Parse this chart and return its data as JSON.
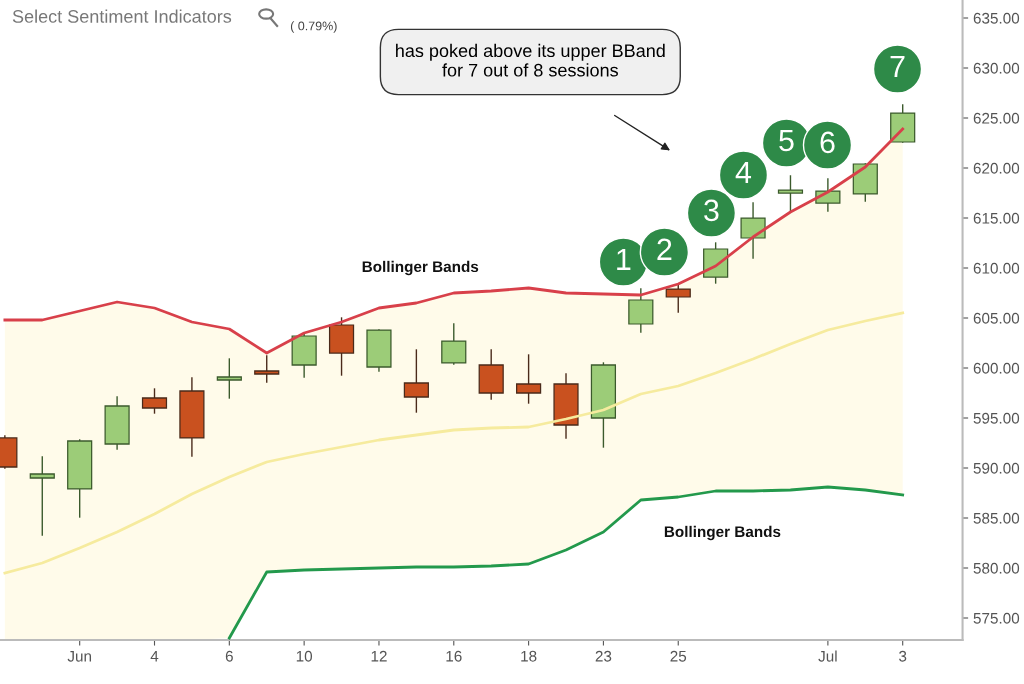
{
  "chart_data": {
    "type": "candlestick",
    "title": "Select Sentiment Indicators",
    "categories": [
      null,
      null,
      "Jun",
      null,
      "4",
      null,
      "6",
      null,
      "10",
      null,
      "12",
      null,
      "16",
      null,
      "18",
      null,
      "23",
      null,
      "25",
      null,
      null,
      null,
      "Jul",
      null,
      "3"
    ],
    "ohlc": [
      [
        593.0,
        593.2,
        590.0,
        590.1
      ],
      [
        589.0,
        591.1,
        583.3,
        589.4
      ],
      [
        587.9,
        592.8,
        585.1,
        592.7
      ],
      [
        592.4,
        597.1,
        591.9,
        596.2
      ],
      [
        597.0,
        597.9,
        595.5,
        596.0
      ],
      [
        597.7,
        599.0,
        591.2,
        593.0
      ],
      [
        598.8,
        600.9,
        597.0,
        599.1
      ],
      [
        599.7,
        601.2,
        598.6,
        599.4
      ],
      [
        600.3,
        603.5,
        599.1,
        603.2
      ],
      [
        604.3,
        605.0,
        599.3,
        601.5
      ],
      [
        600.1,
        603.8,
        599.7,
        603.8
      ],
      [
        598.5,
        601.8,
        595.6,
        597.1
      ],
      [
        600.5,
        604.4,
        600.4,
        602.7
      ],
      [
        600.3,
        601.8,
        596.9,
        597.5
      ],
      [
        598.4,
        601.3,
        596.5,
        597.5
      ],
      [
        598.4,
        599.4,
        593.0,
        594.3
      ],
      [
        595.0,
        600.5,
        592.1,
        600.3
      ],
      [
        604.4,
        607.9,
        603.6,
        606.8
      ],
      [
        607.9,
        608.4,
        605.6,
        607.1
      ],
      [
        609.1,
        612.5,
        608.5,
        611.9
      ],
      [
        613.0,
        616.5,
        611.0,
        615.0
      ],
      [
        617.5,
        619.2,
        615.6,
        617.8
      ],
      [
        616.5,
        618.9,
        615.7,
        617.7
      ],
      [
        617.4,
        620.4,
        616.7,
        620.4
      ],
      [
        622.6,
        626.3,
        622.6,
        625.5
      ]
    ],
    "colors": [
      "#c9511f",
      "#9ccc78",
      "#9ccc78",
      "#9ccc78",
      "#c9511f",
      "#c9511f",
      "#9ccc78",
      "#c9511f",
      "#9ccc78",
      "#c9511f",
      "#9ccc78",
      "#c9511f",
      "#9ccc78",
      "#c9511f",
      "#c9511f",
      "#c9511f",
      "#9ccc78",
      "#9ccc78",
      "#c9511f",
      "#9ccc78",
      "#9ccc78",
      "#9ccc78",
      "#9ccc78",
      "#9ccc78",
      "#9ccc78"
    ],
    "series": [
      {
        "type": "line",
        "color": "#f6eb9e",
        "values": [
          579.5,
          580.5,
          582.0,
          583.6,
          585.4,
          587.4,
          589.1,
          590.6,
          591.4,
          592.1,
          592.8,
          593.3,
          593.8,
          594.0,
          594.1,
          594.9,
          595.8,
          597.4,
          598.2,
          599.5,
          600.9,
          602.4,
          603.8,
          604.7,
          605.5
        ]
      },
      {
        "type": "area",
        "color": "#d8404a",
        "values": [
          604.8,
          604.8,
          605.7,
          606.6,
          606.0,
          604.6,
          603.9,
          601.5,
          603.5,
          604.6,
          606.0,
          606.5,
          607.5,
          607.7,
          608.0,
          607.5,
          607.4,
          607.3,
          608.4,
          610.2,
          613.1,
          615.6,
          617.6,
          620.1,
          623.9
        ]
      },
      {
        "type": "line",
        "color": "#23994c",
        "values": [
          null,
          null,
          null,
          null,
          null,
          null,
          573.0,
          579.6,
          579.8,
          579.9,
          580.0,
          580.1,
          580.1,
          580.2,
          580.4,
          581.8,
          583.6,
          586.8,
          587.1,
          587.7,
          587.7,
          587.8,
          588.1,
          587.8,
          587.3
        ]
      }
    ],
    "ylim": [
      572.8,
      636.8
    ],
    "yticks": [
      {
        "value": 575,
        "label": "575.00"
      },
      {
        "value": 580,
        "label": "580.00"
      },
      {
        "value": 585,
        "label": "585.00"
      },
      {
        "value": 590,
        "label": "590.00"
      },
      {
        "value": 595,
        "label": "595.00"
      },
      {
        "value": 600,
        "label": "600.00"
      },
      {
        "value": 605,
        "label": "605.00"
      },
      {
        "value": 610,
        "label": "610.00"
      },
      {
        "value": 615,
        "label": "615.00"
      },
      {
        "value": 620,
        "label": "620.00"
      },
      {
        "value": 625,
        "label": "625.00"
      },
      {
        "value": 630,
        "label": "630.00"
      },
      {
        "value": 635,
        "label": "635.00"
      }
    ],
    "grid": false,
    "legend": false,
    "annotations": [
      "( 0.79%)",
      "has poked above its upper BBand for 7 out of 8 sessions",
      "Bollinger Bands",
      "Bollinger Bands",
      "1",
      "2",
      "3",
      "4",
      "5",
      "6",
      "7"
    ]
  }
}
